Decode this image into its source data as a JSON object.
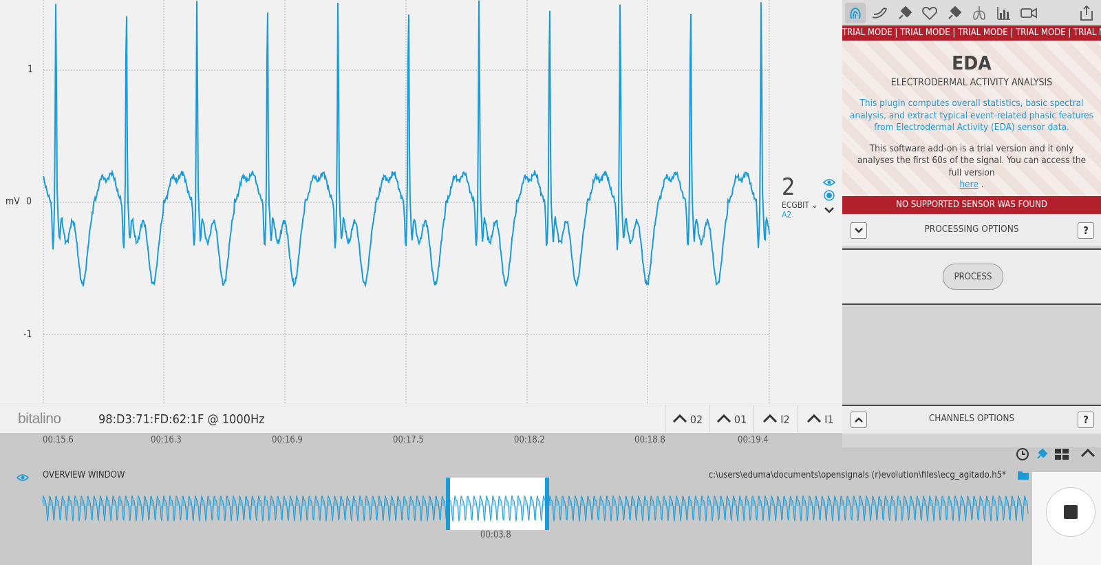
{
  "plot": {
    "y_unit": "mV",
    "y_ticks": [
      "1",
      "0",
      "-1"
    ],
    "channel": {
      "number": "2",
      "name": "ECGBIT",
      "port": "A2"
    }
  },
  "device_bar": {
    "logo": "bitalino",
    "device_label": "98:D3:71:FD:62:1F @ 1000Hz",
    "channel_tabs": [
      "02",
      "01",
      "I2",
      "I1"
    ]
  },
  "time_axis": [
    "00:15.6",
    "00:16.3",
    "00:16.9",
    "00:17.5",
    "00:18.2",
    "00:18.8",
    "00:19.4"
  ],
  "overview": {
    "label": "OVERVIEW WINDOW",
    "file_path": "c:\\users\\eduma\\documents\\opensignals (r)evolution\\files\\ecg_agitado.h5*",
    "window_time": "00:03.8"
  },
  "sidebar": {
    "toolbar_icons": [
      "fingerprint-icon",
      "arm-icon",
      "plug-icon",
      "heart-icon",
      "plug-icon",
      "lungs-icon",
      "bar-chart-icon",
      "video-icon",
      "export-icon"
    ],
    "trial_banner": "TRIAL MODE | TRIAL MODE | TRIAL MODE | TRIAL MODE | TRIAL MODE | TRIAL MODE",
    "plugin": {
      "title": "EDA",
      "subtitle": "ELECTRODERMAL ACTIVITY ANALYSIS",
      "description": "This plugin computes overall statistics, basic spectral analysis, and extract typical event-related phasic features from Electrodermal Activity (EDA) sensor data.",
      "trial_text": "This software add-on is a trial version and it only analyses the first 60s of the signal. You can access the full version",
      "trial_link": "here",
      "trial_end": " ."
    },
    "warning": "NO SUPPORTED SENSOR WAS FOUND",
    "processing_options": "PROCESSING OPTIONS",
    "process_button": "PROCESS",
    "channels_options": "CHANNELS OPTIONS",
    "help": "?"
  },
  "colors": {
    "signal": "#1a9bd7",
    "warning": "#b3202b",
    "plot_bg": "#f1f1f1"
  }
}
